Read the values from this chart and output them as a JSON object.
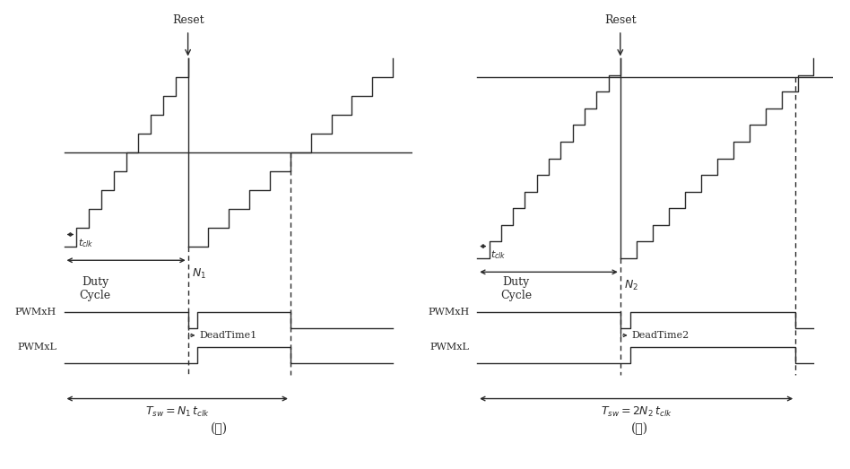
{
  "bg_color": "#ffffff",
  "line_color": "#2a2a2a",
  "fig_width": 9.48,
  "fig_height": 5.23,
  "label_ga": "(가)",
  "label_na": "(나)",
  "reset_label": "Reset",
  "duty_cycle_label": "Duty\nCycle",
  "pwmxh_label": "PWMxH",
  "pwmxl_label": "PWMxL",
  "deadtime1_label": "DeadTime1",
  "deadtime2_label": "DeadTime2",
  "tsw1_label": "$T_{sw} = N_1\\, t_{clk}$",
  "tsw2_label": "$T_{sw} = 2N_2\\, t_{clk}$",
  "n1_label": "$N_1$",
  "n2_label": "$N_2$",
  "tclk_label": "$t_{clk}$"
}
